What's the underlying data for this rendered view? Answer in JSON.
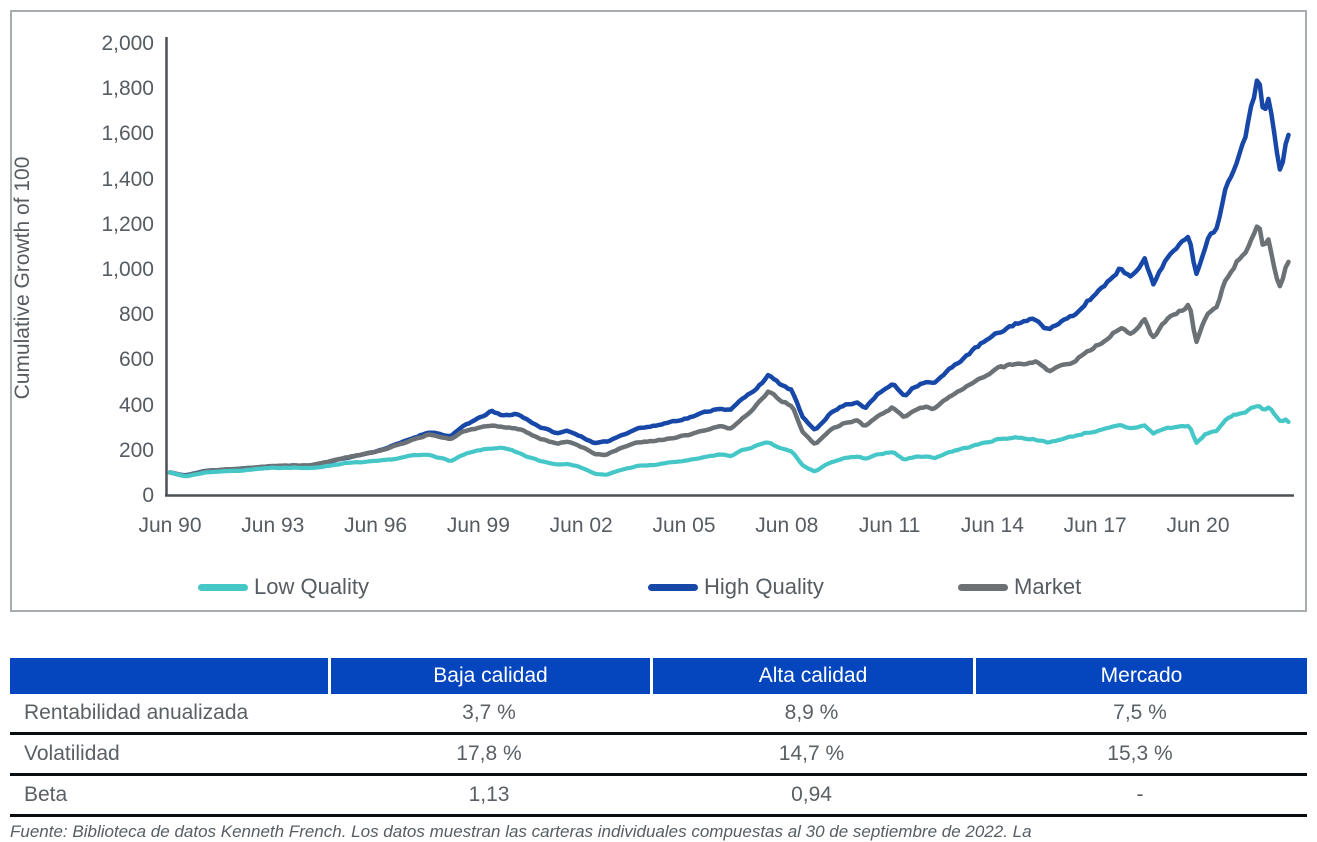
{
  "chart": {
    "y_axis_title": "Cumulative Growth of 100",
    "y_ticks": [
      "2,000",
      "1,800",
      "1,600",
      "1,400",
      "1,200",
      "1,000",
      "800",
      "600",
      "400",
      "200",
      "0"
    ],
    "x_ticks": [
      "Jun 90",
      "Jun 93",
      "Jun 96",
      "Jun 99",
      "Jun 02",
      "Jun 05",
      "Jun 08",
      "Jun 11",
      "Jun 14",
      "Jun 17",
      "Jun 20"
    ],
    "legend": [
      {
        "label": "Low Quality",
        "color": "#45c7c7"
      },
      {
        "label": "High Quality",
        "color": "#1748a8"
      },
      {
        "label": "Market",
        "color": "#6b7175"
      }
    ],
    "axis_color": "#4a5054",
    "border_color": "#a6acb0"
  },
  "chart_data": {
    "type": "line",
    "title": "",
    "xlabel": "",
    "ylabel": "Cumulative Growth of 100",
    "ylim": [
      0,
      2000
    ],
    "x_range": [
      1990.46,
      2022.92
    ],
    "grid": false,
    "legend_position": "bottom",
    "x_tick_labels": [
      "Jun 90",
      "Jun 93",
      "Jun 96",
      "Jun 99",
      "Jun 02",
      "Jun 05",
      "Jun 08",
      "Jun 11",
      "Jun 14",
      "Jun 17",
      "Jun 20"
    ],
    "series": [
      {
        "name": "High Quality",
        "color": "#1748a8",
        "width": 4.5,
        "noise": 0.016,
        "seed": 11,
        "points": [
          [
            1990.46,
            100
          ],
          [
            1990.75,
            90
          ],
          [
            1990.92,
            87
          ],
          [
            1991.5,
            107
          ],
          [
            1992.0,
            112
          ],
          [
            1992.5,
            116
          ],
          [
            1993.0,
            122
          ],
          [
            1993.5,
            126
          ],
          [
            1994.0,
            130
          ],
          [
            1994.5,
            130
          ],
          [
            1995.0,
            145
          ],
          [
            1995.5,
            162
          ],
          [
            1996.0,
            178
          ],
          [
            1996.5,
            196
          ],
          [
            1997.0,
            222
          ],
          [
            1997.5,
            252
          ],
          [
            1998.0,
            280
          ],
          [
            1998.6,
            258
          ],
          [
            1999.0,
            310
          ],
          [
            1999.5,
            345
          ],
          [
            1999.75,
            372
          ],
          [
            2000.1,
            350
          ],
          [
            2000.5,
            360
          ],
          [
            2000.8,
            335
          ],
          [
            2001.2,
            300
          ],
          [
            2001.7,
            272
          ],
          [
            2002.0,
            285
          ],
          [
            2002.5,
            250
          ],
          [
            2002.75,
            228
          ],
          [
            2003.1,
            235
          ],
          [
            2003.5,
            262
          ],
          [
            2004.0,
            295
          ],
          [
            2004.5,
            305
          ],
          [
            2005.0,
            325
          ],
          [
            2005.5,
            342
          ],
          [
            2006.0,
            368
          ],
          [
            2006.4,
            385
          ],
          [
            2006.7,
            375
          ],
          [
            2007.0,
            418
          ],
          [
            2007.4,
            465
          ],
          [
            2007.8,
            528
          ],
          [
            2008.1,
            495
          ],
          [
            2008.5,
            460
          ],
          [
            2008.8,
            340
          ],
          [
            2009.15,
            288
          ],
          [
            2009.6,
            362
          ],
          [
            2010.0,
            398
          ],
          [
            2010.4,
            412
          ],
          [
            2010.6,
            385
          ],
          [
            2011.0,
            448
          ],
          [
            2011.4,
            492
          ],
          [
            2011.75,
            438
          ],
          [
            2012.0,
            478
          ],
          [
            2012.4,
            505
          ],
          [
            2012.6,
            492
          ],
          [
            2013.0,
            548
          ],
          [
            2013.5,
            612
          ],
          [
            2014.0,
            672
          ],
          [
            2014.5,
            718
          ],
          [
            2015.0,
            762
          ],
          [
            2015.6,
            778
          ],
          [
            2015.9,
            732
          ],
          [
            2016.3,
            768
          ],
          [
            2016.7,
            792
          ],
          [
            2017.0,
            848
          ],
          [
            2017.5,
            922
          ],
          [
            2018.0,
            1005
          ],
          [
            2018.3,
            968
          ],
          [
            2018.7,
            1048
          ],
          [
            2018.95,
            928
          ],
          [
            2019.3,
            1042
          ],
          [
            2019.7,
            1095
          ],
          [
            2020.0,
            1160
          ],
          [
            2020.2,
            972
          ],
          [
            2020.5,
            1125
          ],
          [
            2020.8,
            1188
          ],
          [
            2021.0,
            1332
          ],
          [
            2021.3,
            1458
          ],
          [
            2021.6,
            1582
          ],
          [
            2021.9,
            1775
          ],
          [
            2022.0,
            1882
          ],
          [
            2022.15,
            1705
          ],
          [
            2022.3,
            1768
          ],
          [
            2022.5,
            1555
          ],
          [
            2022.65,
            1408
          ],
          [
            2022.8,
            1562
          ],
          [
            2022.92,
            1608
          ]
        ]
      },
      {
        "name": "Market",
        "color": "#6b7175",
        "width": 4.5,
        "noise": 0.016,
        "seed": 29,
        "points": [
          [
            1990.46,
            100
          ],
          [
            1990.75,
            89
          ],
          [
            1990.92,
            85
          ],
          [
            1991.5,
            106
          ],
          [
            1992.0,
            112
          ],
          [
            1992.5,
            116
          ],
          [
            1993.0,
            124
          ],
          [
            1993.5,
            128
          ],
          [
            1994.0,
            131
          ],
          [
            1994.5,
            131
          ],
          [
            1995.0,
            146
          ],
          [
            1995.5,
            164
          ],
          [
            1996.0,
            178
          ],
          [
            1996.5,
            194
          ],
          [
            1997.0,
            218
          ],
          [
            1997.5,
            246
          ],
          [
            1998.0,
            268
          ],
          [
            1998.6,
            245
          ],
          [
            1999.0,
            285
          ],
          [
            1999.5,
            298
          ],
          [
            1999.75,
            308
          ],
          [
            2000.1,
            302
          ],
          [
            2000.5,
            295
          ],
          [
            2000.8,
            278
          ],
          [
            2001.2,
            248
          ],
          [
            2001.7,
            228
          ],
          [
            2002.0,
            238
          ],
          [
            2002.5,
            205
          ],
          [
            2002.75,
            182
          ],
          [
            2003.1,
            178
          ],
          [
            2003.5,
            205
          ],
          [
            2004.0,
            232
          ],
          [
            2004.5,
            238
          ],
          [
            2005.0,
            252
          ],
          [
            2005.5,
            265
          ],
          [
            2006.0,
            288
          ],
          [
            2006.4,
            302
          ],
          [
            2006.7,
            295
          ],
          [
            2007.0,
            332
          ],
          [
            2007.4,
            385
          ],
          [
            2007.8,
            458
          ],
          [
            2008.1,
            425
          ],
          [
            2008.5,
            392
          ],
          [
            2008.8,
            278
          ],
          [
            2009.15,
            222
          ],
          [
            2009.6,
            288
          ],
          [
            2010.0,
            318
          ],
          [
            2010.4,
            330
          ],
          [
            2010.6,
            305
          ],
          [
            2011.0,
            355
          ],
          [
            2011.4,
            388
          ],
          [
            2011.75,
            342
          ],
          [
            2012.0,
            372
          ],
          [
            2012.4,
            395
          ],
          [
            2012.6,
            382
          ],
          [
            2013.0,
            428
          ],
          [
            2013.5,
            472
          ],
          [
            2014.0,
            522
          ],
          [
            2014.5,
            562
          ],
          [
            2015.0,
            582
          ],
          [
            2015.6,
            588
          ],
          [
            2015.9,
            548
          ],
          [
            2016.3,
            572
          ],
          [
            2016.7,
            592
          ],
          [
            2017.0,
            632
          ],
          [
            2017.5,
            682
          ],
          [
            2018.0,
            742
          ],
          [
            2018.3,
            715
          ],
          [
            2018.7,
            775
          ],
          [
            2018.95,
            692
          ],
          [
            2019.3,
            768
          ],
          [
            2019.7,
            805
          ],
          [
            2020.0,
            848
          ],
          [
            2020.2,
            672
          ],
          [
            2020.5,
            795
          ],
          [
            2020.8,
            832
          ],
          [
            2021.0,
            928
          ],
          [
            2021.3,
            1012
          ],
          [
            2021.6,
            1075
          ],
          [
            2021.9,
            1148
          ],
          [
            2022.0,
            1198
          ],
          [
            2022.15,
            1092
          ],
          [
            2022.3,
            1128
          ],
          [
            2022.5,
            975
          ],
          [
            2022.65,
            912
          ],
          [
            2022.8,
            1005
          ],
          [
            2022.92,
            1028
          ]
        ]
      },
      {
        "name": "Low Quality",
        "color": "#45c7c7",
        "width": 4.2,
        "noise": 0.02,
        "seed": 7,
        "points": [
          [
            1990.46,
            100
          ],
          [
            1990.75,
            88
          ],
          [
            1990.92,
            82
          ],
          [
            1991.5,
            100
          ],
          [
            1992.0,
            105
          ],
          [
            1992.5,
            108
          ],
          [
            1993.0,
            115
          ],
          [
            1993.5,
            120
          ],
          [
            1994.0,
            122
          ],
          [
            1994.5,
            118
          ],
          [
            1995.0,
            128
          ],
          [
            1995.5,
            140
          ],
          [
            1996.0,
            145
          ],
          [
            1996.5,
            150
          ],
          [
            1997.0,
            160
          ],
          [
            1997.5,
            175
          ],
          [
            1998.0,
            178
          ],
          [
            1998.6,
            150
          ],
          [
            1999.0,
            180
          ],
          [
            1999.5,
            200
          ],
          [
            2000.0,
            210
          ],
          [
            2000.3,
            200
          ],
          [
            2000.8,
            170
          ],
          [
            2001.2,
            150
          ],
          [
            2001.7,
            135
          ],
          [
            2002.0,
            140
          ],
          [
            2002.5,
            115
          ],
          [
            2002.75,
            95
          ],
          [
            2003.1,
            88
          ],
          [
            2003.5,
            110
          ],
          [
            2004.0,
            128
          ],
          [
            2004.5,
            133
          ],
          [
            2005.0,
            145
          ],
          [
            2005.5,
            153
          ],
          [
            2006.0,
            168
          ],
          [
            2006.4,
            180
          ],
          [
            2006.7,
            172
          ],
          [
            2007.0,
            195
          ],
          [
            2007.4,
            215
          ],
          [
            2007.8,
            232
          ],
          [
            2008.1,
            210
          ],
          [
            2008.5,
            190
          ],
          [
            2008.8,
            130
          ],
          [
            2009.15,
            103
          ],
          [
            2009.6,
            145
          ],
          [
            2010.0,
            162
          ],
          [
            2010.4,
            170
          ],
          [
            2010.6,
            158
          ],
          [
            2011.0,
            180
          ],
          [
            2011.4,
            192
          ],
          [
            2011.75,
            155
          ],
          [
            2012.0,
            168
          ],
          [
            2012.4,
            172
          ],
          [
            2012.6,
            162
          ],
          [
            2013.0,
            188
          ],
          [
            2013.5,
            208
          ],
          [
            2014.0,
            228
          ],
          [
            2014.5,
            248
          ],
          [
            2015.0,
            255
          ],
          [
            2015.6,
            245
          ],
          [
            2015.9,
            230
          ],
          [
            2016.3,
            248
          ],
          [
            2016.7,
            262
          ],
          [
            2017.0,
            275
          ],
          [
            2017.5,
            288
          ],
          [
            2018.0,
            308
          ],
          [
            2018.3,
            295
          ],
          [
            2018.7,
            308
          ],
          [
            2018.95,
            272
          ],
          [
            2019.3,
            295
          ],
          [
            2019.7,
            302
          ],
          [
            2020.0,
            308
          ],
          [
            2020.2,
            228
          ],
          [
            2020.5,
            272
          ],
          [
            2020.8,
            285
          ],
          [
            2021.0,
            325
          ],
          [
            2021.3,
            352
          ],
          [
            2021.6,
            368
          ],
          [
            2021.9,
            392
          ],
          [
            2022.0,
            402
          ],
          [
            2022.15,
            375
          ],
          [
            2022.3,
            388
          ],
          [
            2022.5,
            352
          ],
          [
            2022.65,
            322
          ],
          [
            2022.8,
            338
          ],
          [
            2022.92,
            315
          ]
        ]
      }
    ]
  },
  "table": {
    "header_bg": "#0546be",
    "headers": [
      "",
      "Baja calidad",
      "Alta calidad",
      "Mercado"
    ],
    "rows": [
      {
        "label": "Rentabilidad anualizada",
        "values": [
          "3,7 %",
          "8,9 %",
          "7,5 %"
        ]
      },
      {
        "label": "Volatilidad",
        "values": [
          "17,8 %",
          "14,7 %",
          "15,3 %"
        ]
      },
      {
        "label": "Beta",
        "values": [
          "1,13",
          "0,94",
          "-"
        ]
      }
    ]
  },
  "footer": {
    "source_text": "Fuente: Biblioteca de datos Kenneth French. Los datos muestran las carteras individuales compuestas al 30 de septiembre de 2022. La"
  }
}
